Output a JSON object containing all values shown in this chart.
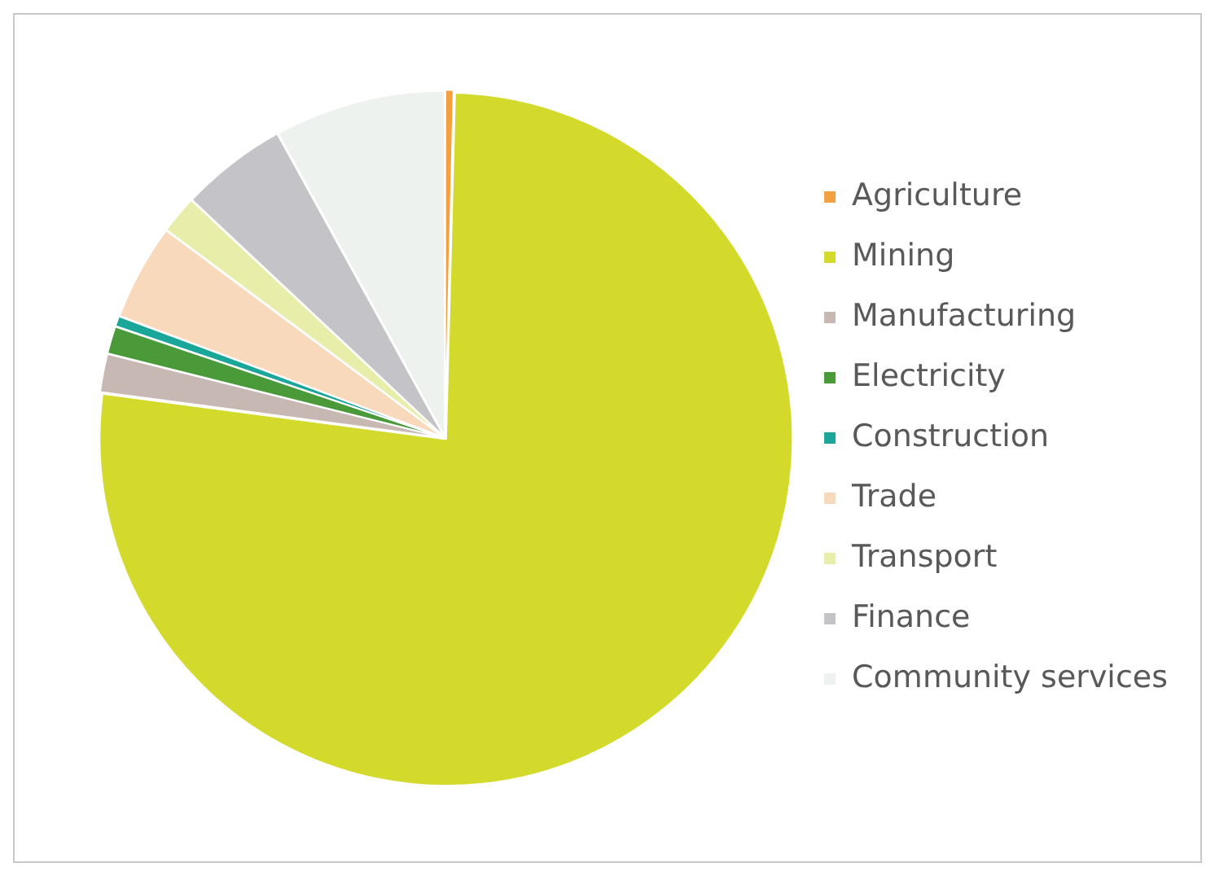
{
  "chart_data": {
    "type": "pie",
    "categories": [
      "Agriculture",
      "Mining",
      "Manufacturing",
      "Electricity",
      "Construction",
      "Trade",
      "Transport",
      "Finance",
      "Community services"
    ],
    "values": [
      0.4,
      76.7,
      1.8,
      1.3,
      0.5,
      4.5,
      1.8,
      5,
      8
    ],
    "colors": [
      "#f4a040",
      "#d4da2c",
      "#c8b8b4",
      "#4a9a3a",
      "#1aa79a",
      "#f8d9bc",
      "#e8eeaa",
      "#c4c4c8",
      "#eef2ee"
    ],
    "legend": "right"
  }
}
